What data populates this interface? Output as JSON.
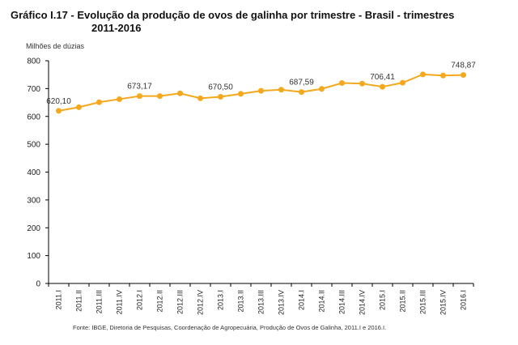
{
  "title_line1": "Gráfico I.17 - Evolução da produção de ovos de galinha por trimestre - Brasil - trimestres",
  "title_line2": "2011-2016",
  "source": "Fonte: IBGE, Diretoria de Pesquisas, Coordenação de Agropecuária, Produção de Ovos de Galinha, 2011.I e 2016.I.",
  "colors": {
    "series": "#f4a81d",
    "axis": "#000000",
    "label": "#333333"
  },
  "chart_data": {
    "type": "line",
    "title": "Gráfico I.17 - Evolução da produção de ovos de galinha por trimestre - Brasil - trimestres 2011-2016",
    "ylabel": "Milhões de dúzias",
    "xlabel": "",
    "ylim": [
      0,
      800
    ],
    "yticks": [
      0,
      100,
      200,
      300,
      400,
      500,
      600,
      700,
      800
    ],
    "grid": false,
    "legend": "none",
    "categories": [
      "2011.I",
      "2011.II",
      "2011.III",
      "2011.IV",
      "2012.I",
      "2012.II",
      "2012.III",
      "2012.IV",
      "2013.I",
      "2013.II",
      "2013.III",
      "2013.IV",
      "2014.I",
      "2014.II",
      "2014.III",
      "2014.IV",
      "2015.I",
      "2015.II",
      "2015.III",
      "2015.IV",
      "2016.I"
    ],
    "values": [
      620.1,
      633,
      651,
      662,
      673.17,
      673,
      683,
      665,
      670.5,
      681,
      692,
      696,
      687.59,
      699,
      720,
      718,
      706.41,
      721,
      751,
      747,
      748.87
    ],
    "data_labels": [
      {
        "index": 0,
        "text": "620,10"
      },
      {
        "index": 4,
        "text": "673,17"
      },
      {
        "index": 8,
        "text": "670,50"
      },
      {
        "index": 12,
        "text": "687,59"
      },
      {
        "index": 16,
        "text": "706,41"
      },
      {
        "index": 20,
        "text": "748,87"
      }
    ]
  }
}
